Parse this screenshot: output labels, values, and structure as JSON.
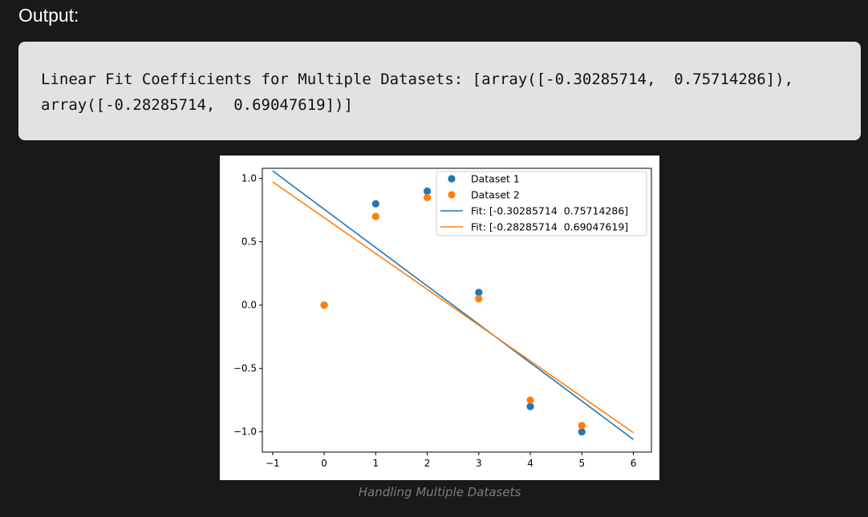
{
  "output_label": "Output:",
  "code_output": {
    "line1": "Linear Fit Coefficients for Multiple Datasets: [array([-0.30285714,  0.75714286]),",
    "line2": "array([-0.28285714,  0.69047619])]"
  },
  "caption": "Handling Multiple Datasets",
  "chart_data": {
    "type": "scatter",
    "title": "",
    "xlabel": "",
    "ylabel": "",
    "xlim": [
      -1.2,
      6.35
    ],
    "ylim": [
      -1.16,
      1.08
    ],
    "xticks": [
      -1,
      0,
      1,
      2,
      3,
      4,
      5,
      6
    ],
    "xtick_labels": [
      "−1",
      "0",
      "1",
      "2",
      "3",
      "4",
      "5",
      "6"
    ],
    "yticks": [
      -1.0,
      -0.5,
      0.0,
      0.5,
      1.0
    ],
    "ytick_labels": [
      "−1.0",
      "−0.5",
      "0.0",
      "0.5",
      "1.0"
    ],
    "grid": false,
    "legend_position": "top-right",
    "series": [
      {
        "name": "Dataset 1",
        "kind": "scatter",
        "color": "#1f77b4",
        "x": [
          0,
          1,
          2,
          3,
          4,
          5
        ],
        "y": [
          0.0,
          0.8,
          0.9,
          0.1,
          -0.8,
          -1.0
        ]
      },
      {
        "name": "Dataset 2",
        "kind": "scatter",
        "color": "#ff7f0e",
        "x": [
          0,
          1,
          2,
          3,
          4,
          5
        ],
        "y": [
          0.0,
          0.7,
          0.85,
          0.05,
          -0.75,
          -0.95
        ]
      },
      {
        "name": "Fit: [-0.30285714  0.75714286]",
        "kind": "line",
        "color": "#1f77b4",
        "x": [
          -1,
          6
        ],
        "y": [
          1.06,
          -1.06
        ]
      },
      {
        "name": "Fit: [-0.28285714  0.69047619]",
        "kind": "line",
        "color": "#ff7f0e",
        "x": [
          -1,
          6
        ],
        "y": [
          0.97333,
          -1.00667
        ]
      }
    ]
  }
}
